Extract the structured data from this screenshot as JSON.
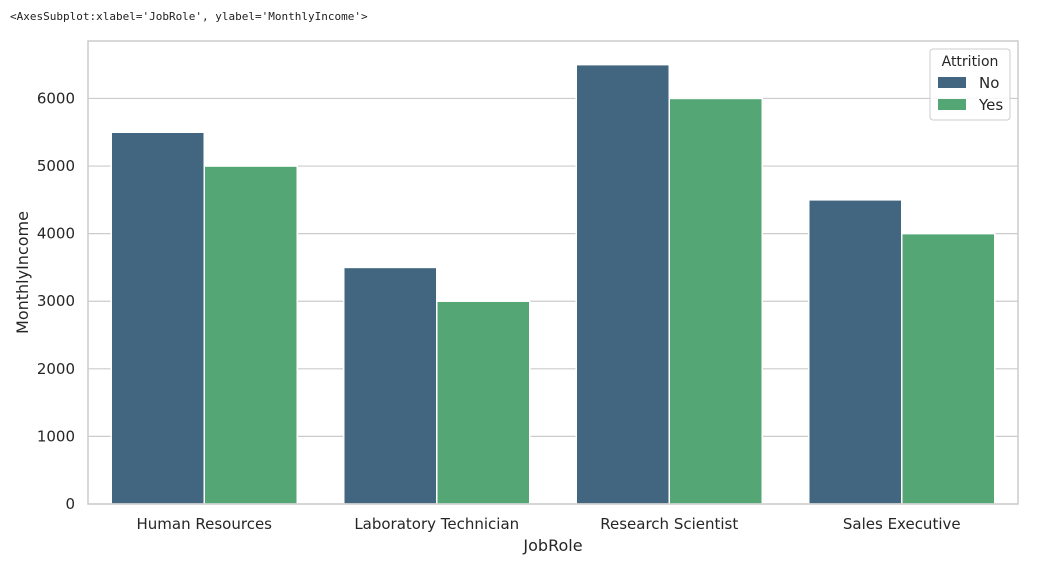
{
  "header": {
    "repr_text": "<AxesSubplot:xlabel='JobRole', ylabel='MonthlyIncome'>"
  },
  "chart_data": {
    "type": "bar",
    "categories": [
      "Human Resources",
      "Laboratory Technician",
      "Research Scientist",
      "Sales Executive"
    ],
    "series": [
      {
        "name": "No",
        "color": "#42667f",
        "values": [
          5500,
          3500,
          6500,
          4500
        ]
      },
      {
        "name": "Yes",
        "color": "#54a775",
        "values": [
          5000,
          3000,
          6000,
          4000
        ]
      }
    ],
    "xlabel": "JobRole",
    "ylabel": "MonthlyIncome",
    "ylim": [
      0,
      6850
    ],
    "yticks": [
      0,
      1000,
      2000,
      3000,
      4000,
      5000,
      6000
    ],
    "grid": true,
    "legend": {
      "title": "Attrition",
      "placement": "top-right"
    }
  }
}
